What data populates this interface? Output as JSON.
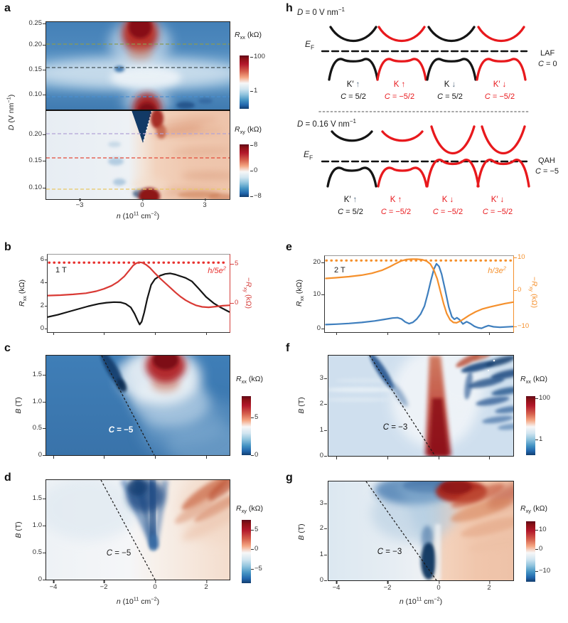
{
  "colors": {
    "red": "#e8191d",
    "black": "#151515",
    "gray_arrow": "#5a7086",
    "b_rxx": "#151515",
    "b_rxy": "#d93a35",
    "e_rxx": "#3f7fbe",
    "e_rxy": "#f5902c"
  },
  "panels": {
    "a": "a",
    "b": "b",
    "c": "c",
    "d": "d",
    "e": "e",
    "f": "f",
    "g": "g",
    "h": "h"
  },
  "shared": {
    "x_axis_label_html": "<i>n</i> (10<sup>11</sup> cm<sup>−2</sup>)",
    "b_axis_label_html": "<i>B</i> (T)",
    "d_axis_label_html": "<i>D</i> (V nm<sup>−1</sup>)",
    "rxx_label_html": "<i>R</i><sub>xx</sub> (kΩ)",
    "rxy_label_html": "<i>R</i><sub>xy</sub> (kΩ)",
    "neg_rxy_label_html": "−<i>R</i><sub>xy</sub> (kΩ)"
  },
  "panel_a": {
    "y_ticks_top": [
      "0.25",
      "0.20",
      "0.15",
      "0.10"
    ],
    "y_ticks_bottom": [
      "0.20",
      "0.15",
      "0.10"
    ],
    "x_ticks": [
      "−3",
      "0",
      "3"
    ],
    "cbar_rxx_ticks": [
      "100",
      "1"
    ],
    "cbar_rxy_ticks": [
      "8",
      "0",
      "−8"
    ]
  },
  "panel_b": {
    "field_label": "1 T",
    "ref_label_html": "<i>h</i>/5<i>e</i><sup>2</sup>",
    "y_ticks": [
      "6",
      "4",
      "2",
      "0"
    ],
    "right_ticks": [
      "5",
      "0"
    ]
  },
  "panel_c": {
    "chern_label_html": "<i>C</i> = −5",
    "y_ticks": [
      "1.5",
      "1.0",
      "0.5",
      "0"
    ],
    "cbar_ticks": [
      "5",
      "0"
    ]
  },
  "panel_d": {
    "chern_label_html": "<i>C</i> = −5",
    "y_ticks": [
      "1.5",
      "1.0",
      "0.5",
      "0"
    ],
    "x_ticks": [
      "−4",
      "−2",
      "0",
      "2"
    ],
    "cbar_ticks": [
      "5",
      "0",
      "−5"
    ]
  },
  "panel_e": {
    "field_label": "2 T",
    "ref_label_html": "<i>h</i>/3<i>e</i><sup>2</sup>",
    "y_ticks": [
      "20",
      "10",
      "0"
    ],
    "right_ticks": [
      "10",
      "0",
      "−10"
    ]
  },
  "panel_f": {
    "chern_label_html": "<i>C</i> = −3",
    "y_ticks": [
      "3",
      "2",
      "1",
      "0"
    ],
    "cbar_ticks": [
      "100",
      "1"
    ]
  },
  "panel_g": {
    "chern_label_html": "<i>C</i> = −3",
    "y_ticks": [
      "3",
      "2",
      "1",
      "0"
    ],
    "x_ticks": [
      "−4",
      "−2",
      "0",
      "2"
    ],
    "cbar_ticks": [
      "10",
      "0",
      "−10"
    ]
  },
  "panel_h": {
    "top": {
      "d_label_html": "<i>D</i> = 0 V nm<sup>−1</sup>",
      "ef_label_html": "<i>E</i><sub>F</sub>",
      "phase": "LAF",
      "phase_chern_html": "<i>C</i> = 0",
      "valleys": [
        {
          "k": "K′",
          "arrow": "↑",
          "chern_html": "<i>C</i> = 5/2"
        },
        {
          "k": "K",
          "arrow": "↑",
          "chern_html": "<i>C</i> = −5/2"
        },
        {
          "k": "K",
          "arrow": "↓",
          "chern_html": "<i>C</i> = 5/2"
        },
        {
          "k": "K′",
          "arrow": "↓",
          "chern_html": "<i>C</i> = −5/2"
        }
      ]
    },
    "bottom": {
      "d_label_html": "<i>D</i> = 0.16 V nm<sup>−1</sup>",
      "ef_label_html": "<i>E</i><sub>F</sub>",
      "phase": "QAH",
      "phase_chern_html": "<i>C</i> = −5",
      "valleys": [
        {
          "k": "K′",
          "arrow": "↑",
          "chern_html": "<i>C</i> = 5/2"
        },
        {
          "k": "K",
          "arrow": "↑",
          "chern_html": "<i>C</i> = −5/2"
        },
        {
          "k": "K",
          "arrow": "↓",
          "chern_html": "<i>C</i> = −5/2"
        },
        {
          "k": "K′",
          "arrow": "↓",
          "chern_html": "<i>C</i> = −5/2"
        }
      ]
    }
  },
  "chart_data": [
    {
      "id": "panel-b",
      "type": "line",
      "title": "",
      "xlabel": "n (10^11 cm^-2)",
      "ylabel_left": "Rxx (kΩ)",
      "ylabel_right": "−Rxy (kΩ)",
      "annotations": [
        "1 T",
        "h/5e^2"
      ],
      "xlim": [
        -4.2,
        2.92
      ],
      "left_ylim": [
        -0.31,
        6.43
      ],
      "right_ylim": [
        -3.72,
        6.18
      ],
      "left_ticks": [
        0,
        2,
        4,
        6
      ],
      "right_ticks": [
        0,
        5
      ],
      "ref_lines": [
        {
          "value": 5.16,
          "axis": "right",
          "color": "#e8312f",
          "label": "h/5e^2"
        }
      ],
      "series": [
        {
          "name": "Rxx",
          "axis": "left",
          "color": "#151515",
          "x": [
            -4.2,
            -3.8,
            -3.4,
            -3.0,
            -2.6,
            -2.2,
            -1.9,
            -1.6,
            -1.35,
            -1.15,
            -0.95,
            -0.8,
            -0.68,
            -0.6,
            -0.52,
            -0.42,
            -0.3,
            -0.15,
            0,
            0.2,
            0.4,
            0.6,
            0.8,
            1.0,
            1.2,
            1.45,
            1.7,
            2.0,
            2.3,
            2.6,
            2.9
          ],
          "y": [
            1.0,
            1.2,
            1.45,
            1.7,
            1.95,
            2.15,
            2.25,
            2.3,
            2.28,
            2.15,
            1.85,
            1.3,
            0.7,
            0.35,
            0.6,
            1.4,
            2.6,
            3.8,
            4.3,
            4.6,
            4.75,
            4.8,
            4.7,
            4.55,
            4.4,
            4.1,
            3.5,
            2.75,
            2.2,
            1.8,
            1.45
          ]
        },
        {
          "name": "−Rxy",
          "axis": "right",
          "color": "#d93a35",
          "x": [
            -4.2,
            -3.7,
            -3.2,
            -2.7,
            -2.3,
            -2.0,
            -1.7,
            -1.45,
            -1.2,
            -1.0,
            -0.85,
            -0.72,
            -0.6,
            -0.5,
            -0.35,
            -0.2,
            0,
            0.2,
            0.4,
            0.6,
            0.8,
            1.0,
            1.2,
            1.4,
            1.6,
            1.85,
            2.1,
            2.4,
            2.65,
            2.9
          ],
          "y": [
            0.95,
            1.0,
            1.1,
            1.25,
            1.5,
            1.8,
            2.2,
            2.7,
            3.4,
            4.2,
            4.8,
            5.1,
            5.2,
            5.15,
            4.9,
            4.5,
            3.8,
            3.15,
            2.55,
            1.95,
            1.35,
            0.8,
            0.35,
            0.0,
            -0.3,
            -0.5,
            -0.55,
            -0.45,
            -0.35,
            -0.3
          ]
        }
      ]
    },
    {
      "id": "panel-e",
      "type": "line",
      "title": "",
      "xlabel": "n (10^11 cm^-2)",
      "ylabel_left": "Rxx (kΩ)",
      "ylabel_right": "−Rxy (kΩ)",
      "annotations": [
        "2 T",
        "h/3e^2"
      ],
      "xlim": [
        -4.44,
        2.92
      ],
      "left_ylim": [
        -1.07,
        21.95
      ],
      "right_ylim": [
        -12.2,
        9.9
      ],
      "left_ticks": [
        0,
        10,
        20
      ],
      "right_ticks": [
        -10,
        0,
        10
      ],
      "ref_lines": [
        {
          "value": 8.6,
          "axis": "right",
          "color": "#f5902c",
          "label": "h/3e^2"
        }
      ],
      "series": [
        {
          "name": "Rxx",
          "axis": "left",
          "color": "#3f7fbe",
          "x": [
            -4.4,
            -4.0,
            -3.5,
            -3.0,
            -2.5,
            -2.1,
            -1.8,
            -1.6,
            -1.45,
            -1.3,
            -1.15,
            -1.0,
            -0.85,
            -0.7,
            -0.55,
            -0.42,
            -0.3,
            -0.18,
            -0.08,
            0.02,
            0.12,
            0.25,
            0.4,
            0.52,
            0.62,
            0.72,
            0.82,
            0.95,
            1.1,
            1.25,
            1.4,
            1.55,
            1.68,
            1.8,
            1.95,
            2.15,
            2.4,
            2.65,
            2.9
          ],
          "y": [
            1.2,
            1.35,
            1.55,
            1.85,
            2.3,
            2.8,
            3.2,
            3.3,
            2.9,
            2.0,
            1.5,
            1.9,
            2.9,
            4.4,
            6.8,
            10.5,
            14.5,
            18.0,
            19.6,
            18.8,
            16.5,
            12.0,
            6.5,
            3.6,
            2.8,
            3.3,
            2.7,
            1.4,
            2.1,
            1.5,
            0.7,
            0.25,
            0.1,
            0.5,
            0.9,
            0.55,
            0.4,
            0.5,
            0.6
          ]
        },
        {
          "name": "−Rxy",
          "axis": "right",
          "color": "#f5902c",
          "x": [
            -4.4,
            -4.0,
            -3.5,
            -3.0,
            -2.6,
            -2.2,
            -1.9,
            -1.65,
            -1.45,
            -1.25,
            -1.05,
            -0.85,
            -0.65,
            -0.48,
            -0.32,
            -0.18,
            -0.05,
            0.08,
            0.2,
            0.32,
            0.45,
            0.58,
            0.7,
            0.85,
            1.0,
            1.2,
            1.45,
            1.7,
            2.0,
            2.3,
            2.6,
            2.9
          ],
          "y": [
            3.4,
            3.6,
            3.9,
            4.35,
            4.9,
            5.8,
            6.8,
            7.8,
            8.5,
            8.9,
            9.0,
            9.0,
            8.85,
            8.5,
            7.6,
            5.8,
            3.2,
            -0.5,
            -4.0,
            -6.8,
            -8.6,
            -9.4,
            -9.5,
            -9.0,
            -8.3,
            -7.3,
            -6.3,
            -5.5,
            -4.9,
            -4.4,
            -3.9,
            -3.5
          ]
        }
      ]
    },
    {
      "id": "panel-a-top",
      "type": "heatmap",
      "value": "Rxx (kΩ)",
      "xlabel": "n (10^11 cm^-2)",
      "ylabel": "D (V nm^-1)",
      "xlim": [
        -4.6,
        4.2
      ],
      "ylim": [
        0.09,
        0.255
      ],
      "colorbar": {
        "scale": "log",
        "ticks": [
          1,
          100
        ]
      },
      "dashed_cuts_D": [
        0.205,
        0.16,
        0.108
      ],
      "features": [
        "deep-red insulating pocket at n≈0, D>0.21",
        "weaker red pocket at n≈0.1 near D≈0.095",
        "pale high-conductance band around D≈0.13-0.17",
        "small dark-blue low-Rxx spot at n≈-1.2, D≈0.16",
        "blue background elsewhere"
      ]
    },
    {
      "id": "panel-a-bottom",
      "type": "heatmap",
      "value": "Rxy (kΩ)",
      "xlabel": "n (10^11 cm^-2)",
      "ylabel": "D (V nm^-1)",
      "xlim": [
        -4.6,
        4.2
      ],
      "ylim": [
        0.085,
        0.24
      ],
      "colorbar": {
        "scale": "linear",
        "ticks": [
          -8,
          0,
          8
        ]
      },
      "dashed_cuts_D": [
        0.205,
        0.16,
        0.1
      ],
      "features": [
        "near-zero pale region for n<0",
        "positive (salmon) region for n>0",
        "dark-negative wedge at n≈0, D≈0.20-0.24 bordered by dark red",
        "dark red spot at n≈0.3 near D≈0.09"
      ]
    },
    {
      "id": "panel-c",
      "type": "heatmap",
      "value": "Rxx (kΩ)",
      "xlabel": "n (10^11 cm^-2)",
      "ylabel": "B (T)",
      "xlim": [
        -4.25,
        2.92
      ],
      "ylim": [
        0,
        1.9
      ],
      "colorbar": {
        "scale": "linear",
        "ticks": [
          0,
          5
        ]
      },
      "gap_line": {
        "label": "C = −5",
        "from": [
          -2.1,
          1.9
        ],
        "to": [
          0,
          0
        ]
      },
      "features": [
        "dark-blue zero-Rxx streak along C=-5 line above B≈1",
        "white halo around charge neutrality",
        "red maximum at n≈0.3 for B>1.2"
      ]
    },
    {
      "id": "panel-d",
      "type": "heatmap",
      "value": "Rxy (kΩ)",
      "xlabel": "n (10^11 cm^-2)",
      "ylabel": "B (T)",
      "xlim": [
        -4.25,
        2.92
      ],
      "ylim": [
        0,
        1.85
      ],
      "colorbar": {
        "scale": "linear",
        "ticks": [
          -5,
          0,
          5
        ]
      },
      "gap_line": {
        "label": "C = −5",
        "from": [
          -2.1,
          1.85
        ],
        "to": [
          0,
          0
        ]
      },
      "features": [
        "negative (blue) fan converging to C=-5 line at n≈-1.2, B≈1",
        "positive (red) fan at n>0, B>1",
        "near-zero white elsewhere"
      ]
    },
    {
      "id": "panel-f",
      "type": "heatmap",
      "value": "Rxx (kΩ)",
      "xlabel": "n (10^11 cm^-2)",
      "ylabel": "B (T)",
      "xlim": [
        -4.3,
        2.92
      ],
      "ylim": [
        0,
        3.85
      ],
      "colorbar": {
        "scale": "log",
        "ticks": [
          1,
          100
        ]
      },
      "gap_line": {
        "label": "C = −3",
        "from": [
          -2.7,
          3.85
        ],
        "to": [
          -0.15,
          0
        ]
      },
      "features": [
        "red high-Rxx column at n≈-0.2 strongest near B=0",
        "dark-blue streak along C=-3 line at high B",
        "Landau-fan lattice of blue minima for n>0.5"
      ]
    },
    {
      "id": "panel-g",
      "type": "heatmap",
      "value": "Rxy (kΩ)",
      "xlabel": "n (10^11 cm^-2)",
      "ylabel": "B (T)",
      "xlim": [
        -4.3,
        2.92
      ],
      "ylim": [
        0,
        3.86
      ],
      "colorbar": {
        "scale": "linear",
        "ticks": [
          -10,
          0,
          10
        ]
      },
      "gap_line": {
        "label": "C = −3",
        "from": [
          -2.8,
          3.86
        ],
        "to": [
          -0.1,
          0
        ]
      },
      "features": [
        "deep-negative navy pocket at n≈-0.3 below B≈1.2",
        "negative blue wedge widening with B on hole side",
        "strong positive red fan for n>0, dark red near n≈0.8, B>2.5"
      ]
    }
  ]
}
